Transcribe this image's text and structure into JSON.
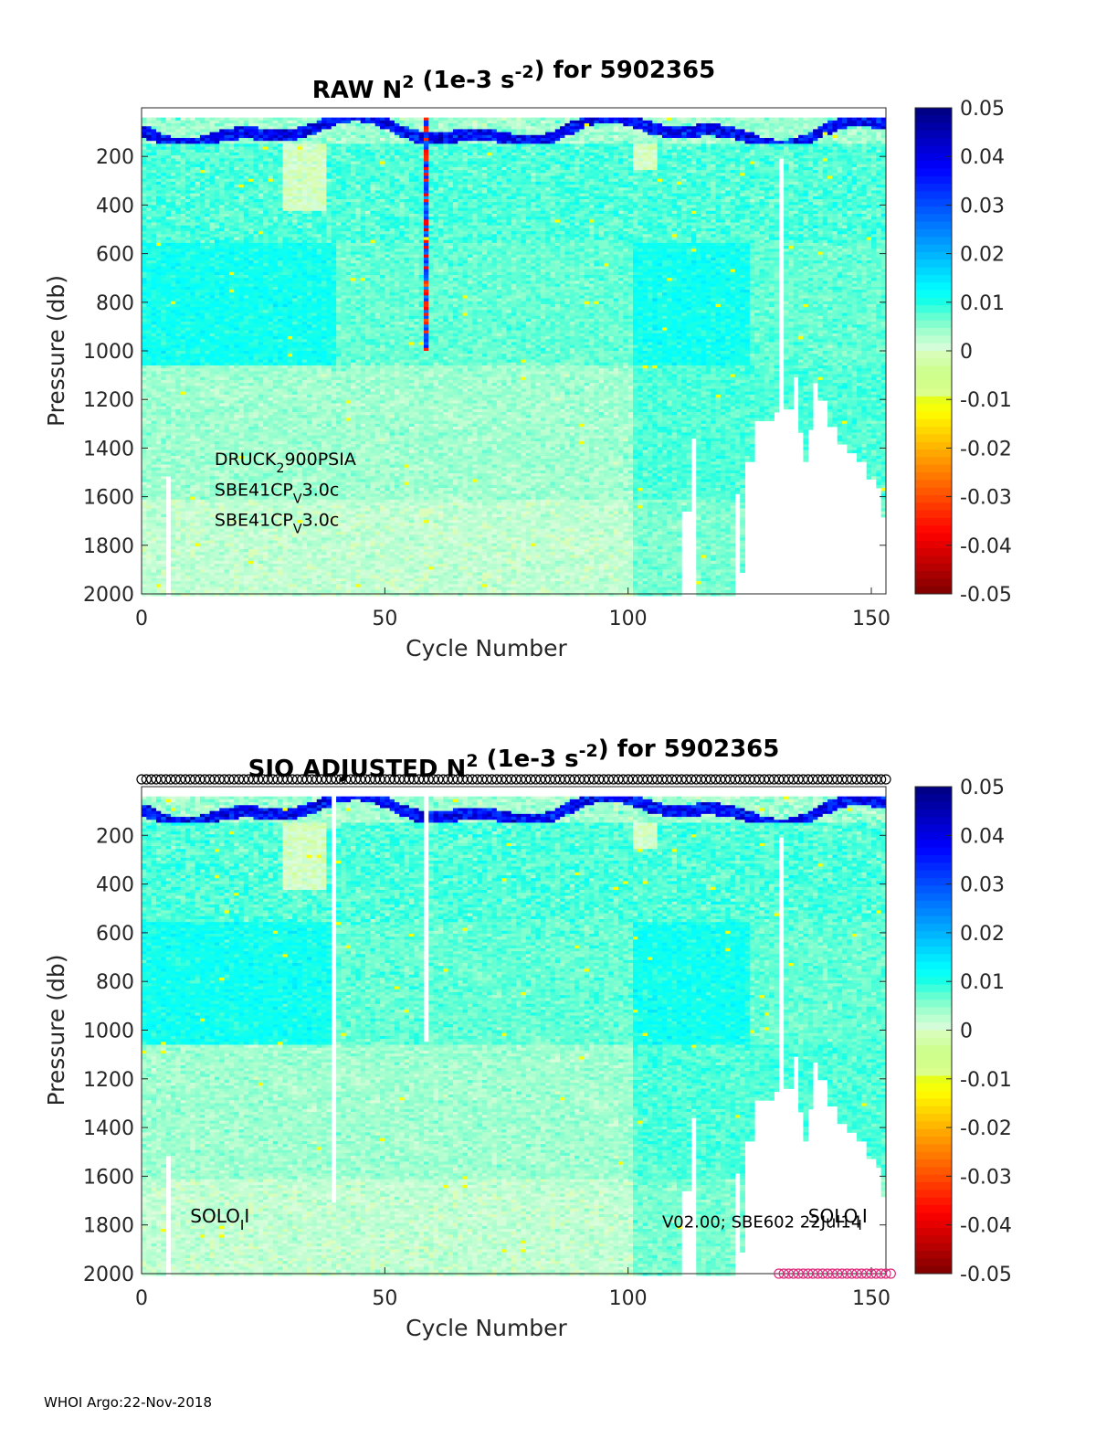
{
  "footer": "WHOI Argo:22-Nov-2018",
  "chart_data": [
    {
      "type": "heatmap",
      "title_prefix": "RAW N",
      "title_sup1": "2",
      "title_mid": " (1e-3 s",
      "title_sup2": "-2",
      "title_suffix": ") for 5902365",
      "xlabel": "Cycle Number",
      "ylabel": "Pressure (db)",
      "xlim": [
        0,
        153
      ],
      "ylim": [
        0,
        2000
      ],
      "y_reversed": true,
      "xticks": [
        0,
        50,
        100,
        150
      ],
      "yticks": [
        200,
        400,
        600,
        800,
        1000,
        1200,
        1400,
        1600,
        1800,
        2000
      ],
      "colorbar": {
        "clim": [
          -0.05,
          0.05
        ],
        "ticks": [
          0.05,
          0.04,
          0.03,
          0.02,
          0.01,
          0,
          -0.01,
          -0.02,
          -0.03,
          -0.04,
          -0.05
        ],
        "tick_labels": [
          "0.05",
          "0.04",
          "0.03",
          "0.02",
          "0.01",
          "0",
          "-0.01",
          "-0.02",
          "-0.03",
          "-0.04",
          "-0.05"
        ],
        "colormap": "jet-white-center"
      },
      "annotations": [
        {
          "x": 15,
          "p": 1470,
          "base": "DRUCK",
          "sub": "2",
          "rest": "900PSIA"
        },
        {
          "x": 15,
          "p": 1595,
          "base": "SBE41CP",
          "sub": "V",
          "rest": "3.0c"
        },
        {
          "x": 15,
          "p": 1720,
          "base": "SBE41CP",
          "sub": "V",
          "rest": "3.0c"
        }
      ],
      "max_pressure_profile": [
        [
          0,
          2000
        ],
        [
          4,
          2000
        ],
        [
          5,
          1510
        ],
        [
          6,
          2000
        ],
        [
          110,
          2000
        ],
        [
          111,
          1650
        ],
        [
          113,
          1350
        ],
        [
          114,
          2000
        ],
        [
          121,
          2000
        ],
        [
          122,
          1580
        ],
        [
          123,
          1900
        ],
        [
          124,
          1450
        ],
        [
          126,
          1280
        ],
        [
          130,
          1250
        ],
        [
          131,
          200
        ],
        [
          132,
          1230
        ],
        [
          134,
          1100
        ],
        [
          135,
          1330
        ],
        [
          136,
          1450
        ],
        [
          137,
          1320
        ],
        [
          138,
          1130
        ],
        [
          139,
          1200
        ],
        [
          141,
          1300
        ],
        [
          143,
          1380
        ],
        [
          145,
          1410
        ],
        [
          147,
          1450
        ],
        [
          149,
          1520
        ],
        [
          151,
          1560
        ],
        [
          152,
          1680
        ],
        [
          153,
          1680
        ]
      ],
      "spike_cycle": 58
    },
    {
      "type": "heatmap",
      "title_prefix": "SIO  ADJUSTED N",
      "title_sup1": "2",
      "title_mid": " (1e-3 s",
      "title_sup2": "-2",
      "title_suffix": ") for 5902365",
      "xlabel": "Cycle Number",
      "ylabel": "Pressure (db)",
      "xlim": [
        0,
        153
      ],
      "ylim": [
        0,
        2000
      ],
      "y_reversed": true,
      "xticks": [
        0,
        50,
        100,
        150
      ],
      "yticks": [
        200,
        400,
        600,
        800,
        1000,
        1200,
        1400,
        1600,
        1800,
        2000
      ],
      "colorbar": {
        "clim": [
          -0.05,
          0.05
        ],
        "ticks": [
          0.05,
          0.04,
          0.03,
          0.02,
          0.01,
          0,
          -0.01,
          -0.02,
          -0.03,
          -0.04,
          -0.05
        ],
        "tick_labels": [
          "0.05",
          "0.04",
          "0.03",
          "0.02",
          "0.01",
          "0",
          "-0.01",
          "-0.02",
          "-0.03",
          "-0.04",
          "-0.05"
        ],
        "colormap": "jet-white-center"
      },
      "annotations": [
        {
          "x": 10,
          "p": 1790,
          "base": "SOLO",
          "sub": "I",
          "rest": "I",
          "size": 20
        },
        {
          "x": 107,
          "p": 1810,
          "base": "V02.00; SBE602 22Jul14",
          "sub": "",
          "rest": "",
          "size": 18
        },
        {
          "x": 137,
          "p": 1790,
          "base": "SOLO",
          "sub": "I",
          "rest": "I",
          "size": 20
        }
      ],
      "qc_markers_top": {
        "from": 0,
        "to": 153,
        "p": -30,
        "color": "#000000"
      },
      "qc_markers_bottom": {
        "from": 131,
        "to": 154,
        "p": 2000,
        "color": "#e0287a"
      },
      "max_pressure_profile": [
        [
          0,
          2000
        ],
        [
          4,
          2000
        ],
        [
          5,
          1510
        ],
        [
          6,
          2000
        ],
        [
          110,
          2000
        ],
        [
          111,
          1650
        ],
        [
          113,
          1350
        ],
        [
          114,
          2000
        ],
        [
          121,
          2000
        ],
        [
          122,
          1580
        ],
        [
          123,
          1900
        ],
        [
          124,
          1450
        ],
        [
          126,
          1280
        ],
        [
          130,
          1250
        ],
        [
          131,
          200
        ],
        [
          132,
          1230
        ],
        [
          134,
          1100
        ],
        [
          135,
          1330
        ],
        [
          136,
          1450
        ],
        [
          137,
          1320
        ],
        [
          138,
          1130
        ],
        [
          139,
          1200
        ],
        [
          141,
          1300
        ],
        [
          143,
          1380
        ],
        [
          145,
          1410
        ],
        [
          147,
          1450
        ],
        [
          149,
          1520
        ],
        [
          151,
          1560
        ],
        [
          152,
          1680
        ],
        [
          153,
          1680
        ]
      ],
      "gap_lines": [
        [
          39,
          1700
        ],
        [
          58,
          1040
        ]
      ]
    }
  ]
}
